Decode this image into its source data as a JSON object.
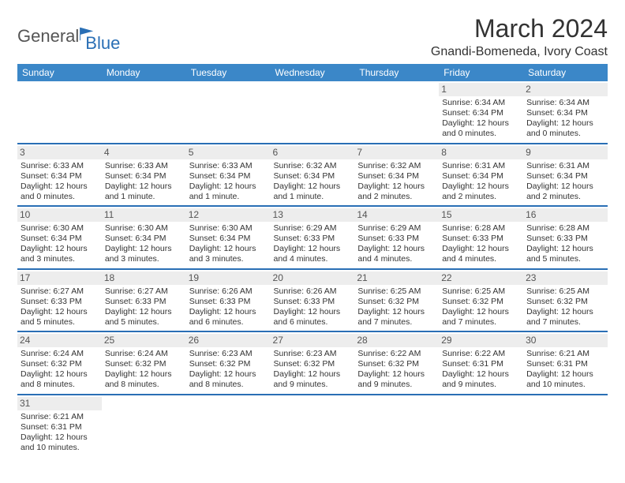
{
  "brand": {
    "text1": "General",
    "text2": "Blue"
  },
  "title": "March 2024",
  "location": "Gnandi-Bomeneda, Ivory Coast",
  "colors": {
    "header_bg": "#3b87c8",
    "header_text": "#ffffff",
    "row_divider": "#2a6fb5",
    "daynum_bg": "#ededed",
    "logo_blue": "#2a6fb5"
  },
  "days_of_week": [
    "Sunday",
    "Monday",
    "Tuesday",
    "Wednesday",
    "Thursday",
    "Friday",
    "Saturday"
  ],
  "weeks": [
    [
      null,
      null,
      null,
      null,
      null,
      {
        "n": "1",
        "sr": "6:34 AM",
        "ss": "6:34 PM",
        "dl": "12 hours and 0 minutes."
      },
      {
        "n": "2",
        "sr": "6:34 AM",
        "ss": "6:34 PM",
        "dl": "12 hours and 0 minutes."
      }
    ],
    [
      {
        "n": "3",
        "sr": "6:33 AM",
        "ss": "6:34 PM",
        "dl": "12 hours and 0 minutes."
      },
      {
        "n": "4",
        "sr": "6:33 AM",
        "ss": "6:34 PM",
        "dl": "12 hours and 1 minute."
      },
      {
        "n": "5",
        "sr": "6:33 AM",
        "ss": "6:34 PM",
        "dl": "12 hours and 1 minute."
      },
      {
        "n": "6",
        "sr": "6:32 AM",
        "ss": "6:34 PM",
        "dl": "12 hours and 1 minute."
      },
      {
        "n": "7",
        "sr": "6:32 AM",
        "ss": "6:34 PM",
        "dl": "12 hours and 2 minutes."
      },
      {
        "n": "8",
        "sr": "6:31 AM",
        "ss": "6:34 PM",
        "dl": "12 hours and 2 minutes."
      },
      {
        "n": "9",
        "sr": "6:31 AM",
        "ss": "6:34 PM",
        "dl": "12 hours and 2 minutes."
      }
    ],
    [
      {
        "n": "10",
        "sr": "6:30 AM",
        "ss": "6:34 PM",
        "dl": "12 hours and 3 minutes."
      },
      {
        "n": "11",
        "sr": "6:30 AM",
        "ss": "6:34 PM",
        "dl": "12 hours and 3 minutes."
      },
      {
        "n": "12",
        "sr": "6:30 AM",
        "ss": "6:34 PM",
        "dl": "12 hours and 3 minutes."
      },
      {
        "n": "13",
        "sr": "6:29 AM",
        "ss": "6:33 PM",
        "dl": "12 hours and 4 minutes."
      },
      {
        "n": "14",
        "sr": "6:29 AM",
        "ss": "6:33 PM",
        "dl": "12 hours and 4 minutes."
      },
      {
        "n": "15",
        "sr": "6:28 AM",
        "ss": "6:33 PM",
        "dl": "12 hours and 4 minutes."
      },
      {
        "n": "16",
        "sr": "6:28 AM",
        "ss": "6:33 PM",
        "dl": "12 hours and 5 minutes."
      }
    ],
    [
      {
        "n": "17",
        "sr": "6:27 AM",
        "ss": "6:33 PM",
        "dl": "12 hours and 5 minutes."
      },
      {
        "n": "18",
        "sr": "6:27 AM",
        "ss": "6:33 PM",
        "dl": "12 hours and 5 minutes."
      },
      {
        "n": "19",
        "sr": "6:26 AM",
        "ss": "6:33 PM",
        "dl": "12 hours and 6 minutes."
      },
      {
        "n": "20",
        "sr": "6:26 AM",
        "ss": "6:33 PM",
        "dl": "12 hours and 6 minutes."
      },
      {
        "n": "21",
        "sr": "6:25 AM",
        "ss": "6:32 PM",
        "dl": "12 hours and 7 minutes."
      },
      {
        "n": "22",
        "sr": "6:25 AM",
        "ss": "6:32 PM",
        "dl": "12 hours and 7 minutes."
      },
      {
        "n": "23",
        "sr": "6:25 AM",
        "ss": "6:32 PM",
        "dl": "12 hours and 7 minutes."
      }
    ],
    [
      {
        "n": "24",
        "sr": "6:24 AM",
        "ss": "6:32 PM",
        "dl": "12 hours and 8 minutes."
      },
      {
        "n": "25",
        "sr": "6:24 AM",
        "ss": "6:32 PM",
        "dl": "12 hours and 8 minutes."
      },
      {
        "n": "26",
        "sr": "6:23 AM",
        "ss": "6:32 PM",
        "dl": "12 hours and 8 minutes."
      },
      {
        "n": "27",
        "sr": "6:23 AM",
        "ss": "6:32 PM",
        "dl": "12 hours and 9 minutes."
      },
      {
        "n": "28",
        "sr": "6:22 AM",
        "ss": "6:32 PM",
        "dl": "12 hours and 9 minutes."
      },
      {
        "n": "29",
        "sr": "6:22 AM",
        "ss": "6:31 PM",
        "dl": "12 hours and 9 minutes."
      },
      {
        "n": "30",
        "sr": "6:21 AM",
        "ss": "6:31 PM",
        "dl": "12 hours and 10 minutes."
      }
    ],
    [
      {
        "n": "31",
        "sr": "6:21 AM",
        "ss": "6:31 PM",
        "dl": "12 hours and 10 minutes."
      },
      null,
      null,
      null,
      null,
      null,
      null
    ]
  ],
  "labels": {
    "sunrise": "Sunrise: ",
    "sunset": "Sunset: ",
    "daylight": "Daylight: "
  }
}
